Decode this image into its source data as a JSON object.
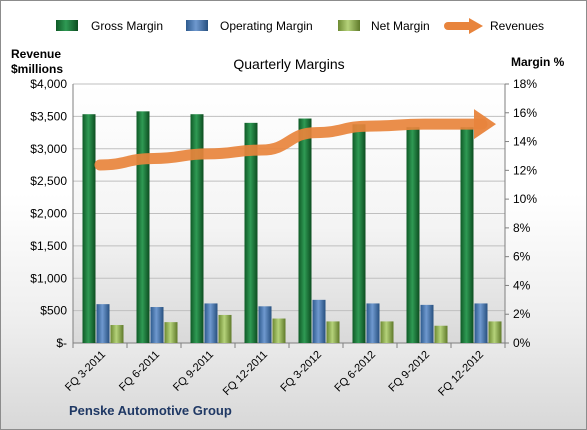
{
  "chart_data": {
    "type": "bar",
    "title": "Quarterly Margins",
    "company": "Penske Automotive Group",
    "left_axis": {
      "label_line1": "Revenue",
      "label_line2": "$millions",
      "range": [
        0,
        4000
      ],
      "ticks": [
        "$-",
        "$500",
        "$1,000",
        "$1,500",
        "$2,000",
        "$2,500",
        "$3,000",
        "$3,500",
        "$4,000"
      ]
    },
    "right_axis": {
      "label": "Margin %",
      "range": [
        0,
        18
      ],
      "ticks": [
        "0%",
        "2%",
        "4%",
        "6%",
        "8%",
        "10%",
        "12%",
        "14%",
        "16%",
        "18%"
      ]
    },
    "categories": [
      "FQ 3-2011",
      "FQ 6-2011",
      "FQ 9-2011",
      "FQ 12-2011",
      "FQ 3-2012",
      "FQ 6-2012",
      "FQ 9-2012",
      "FQ 12-2012"
    ],
    "series": [
      {
        "name": "Gross Margin",
        "type": "bar",
        "axis": "right",
        "color": "#1e7a3c",
        "values": [
          15.9,
          16.1,
          15.9,
          15.3,
          15.6,
          15.2,
          15.0,
          15.0
        ]
      },
      {
        "name": "Operating Margin",
        "type": "bar",
        "axis": "right",
        "color": "#4f81bd",
        "values": [
          2.7,
          2.5,
          2.75,
          2.55,
          3.0,
          2.75,
          2.65,
          2.75
        ]
      },
      {
        "name": "Net Margin",
        "type": "bar",
        "axis": "right",
        "color": "#9bbb59",
        "values": [
          1.25,
          1.45,
          1.95,
          1.7,
          1.5,
          1.5,
          1.2,
          1.5
        ]
      },
      {
        "name": "Revenues",
        "type": "line",
        "axis": "left",
        "color": "#e8843c",
        "values": [
          2750,
          2850,
          2920,
          2980,
          3250,
          3350,
          3380,
          3380
        ]
      }
    ],
    "legend_position": "top",
    "grid": true
  }
}
